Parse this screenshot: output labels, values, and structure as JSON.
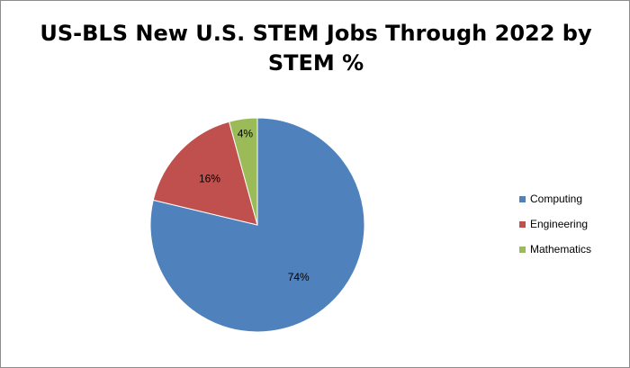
{
  "chart_data": {
    "type": "pie",
    "title": "US-BLS New U.S. STEM Jobs Through 2022 by STEM %",
    "categories": [
      "Computing",
      "Engineering",
      "Mathematics"
    ],
    "values": [
      74,
      16,
      4
    ],
    "labels": [
      "74%",
      "16%",
      "4%"
    ],
    "colors": [
      "#4f81bd",
      "#c0504d",
      "#9bbb59"
    ],
    "legend": "right"
  }
}
